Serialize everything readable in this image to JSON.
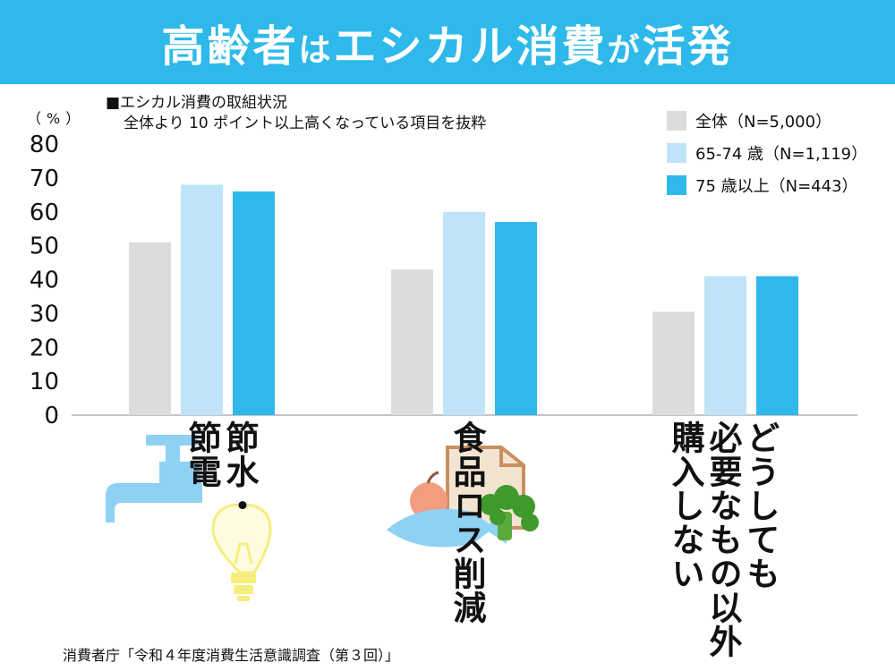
{
  "header": {
    "title_a": "高齢者",
    "title_b": "は",
    "title_c": "エシカル消費",
    "title_d": "が",
    "title_e": "活発"
  },
  "note": {
    "line1": "■エシカル消費の取組状況",
    "line2": "全体より 10 ポイント以上高くなっている項目を抜粋"
  },
  "yunit": "（%）",
  "source": "消費者庁「令和４年度消費生活意識調査（第３回）」",
  "chart_data": {
    "type": "bar",
    "categories": [
      "節水・節電",
      "食品ロス削減",
      "どうしても必要なもの以外購入しない"
    ],
    "category_lines": [
      [
        "節水・",
        "節電"
      ],
      [
        "食品ロス削減"
      ],
      [
        "どうしても",
        "必要なもの以外",
        "購入しない"
      ]
    ],
    "series": [
      {
        "name": "全体（N=5,000）",
        "values": [
          51,
          43,
          30.5
        ],
        "color": "#dcdcdc"
      },
      {
        "name": "65-74 歳（N=1,119）",
        "values": [
          68,
          60,
          41
        ],
        "color": "#bfe4f7"
      },
      {
        "name": "75 歳以上（N=443）",
        "values": [
          66,
          57,
          41
        ],
        "color": "#2eb9ea"
      }
    ],
    "ylim": [
      0,
      80
    ],
    "yticks": [
      0,
      10,
      20,
      30,
      40,
      50,
      60,
      70,
      80
    ],
    "grid": false,
    "legend": "top-right"
  }
}
